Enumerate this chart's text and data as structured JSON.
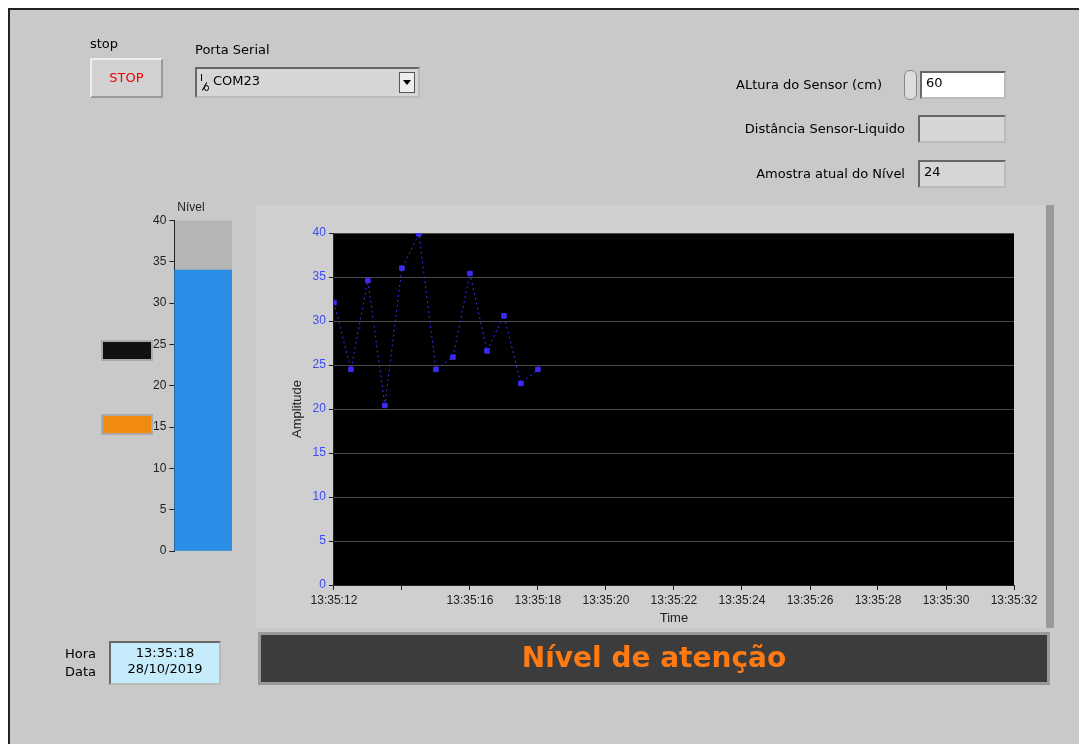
{
  "chart_data": [
    {
      "type": "bar",
      "title": "Nível",
      "categories": [
        null
      ],
      "values": [
        34
      ],
      "color": "#2a8ee6",
      "ylim": [
        0,
        40
      ],
      "yticks": [
        0,
        5,
        10,
        15,
        20,
        25,
        30,
        35,
        40
      ],
      "grid": false,
      "tick_labels": "y"
    },
    {
      "type": "line",
      "xlabel": "Time",
      "ylabel": "Amplitude",
      "x": [
        13.586667,
        13.586806,
        13.586944,
        13.587083,
        13.587222,
        13.587361,
        13.5875,
        13.587639,
        13.587778,
        13.587917,
        13.588056,
        13.588194,
        13.588333
      ],
      "series": [
        {
          "color": "#3c2cf2",
          "values": [
            32.1,
            24.5,
            34.6,
            20.4,
            36,
            39.9,
            24.5,
            25.9,
            35.4,
            26.6,
            30.6,
            22.9,
            24.5
          ]
        }
      ],
      "xlim": [
        13.586667,
        13.592222
      ],
      "xticks": [
        {
          "value": 13.586667,
          "label": "13:35:12"
        },
        {
          "value": 13.587222,
          "label": null
        },
        {
          "value": 13.587778,
          "label": "13:35:16"
        },
        {
          "value": 13.588333,
          "label": "13:35:18"
        },
        {
          "value": 13.588889,
          "label": "13:35:20"
        },
        {
          "value": 13.589444,
          "label": "13:35:22"
        },
        {
          "value": 13.59,
          "label": "13:35:24"
        },
        {
          "value": 13.590556,
          "label": "13:35:26"
        },
        {
          "value": 13.591111,
          "label": "13:35:28"
        },
        {
          "value": 13.591667,
          "label": "13:35:30"
        },
        {
          "value": 13.592222,
          "label": "13:35:32"
        }
      ],
      "ylim": [
        0,
        40
      ],
      "yticks": [
        0,
        5,
        10,
        15,
        20,
        25,
        30,
        35,
        40
      ],
      "grid": "y",
      "marker": "square",
      "line_style": "dotted"
    },
    {
      "type": "other",
      "annotations": [
        "stop",
        "STOP",
        "Porta Serial",
        "COM23",
        "ALtura do Sensor (cm)",
        "60",
        "Distância Sensor-Liquido",
        "Amostra atual do Nível",
        "24",
        "Hora",
        "Data",
        "13:35:18",
        "28/10/2019",
        "Nível de atenção"
      ]
    }
  ]
}
